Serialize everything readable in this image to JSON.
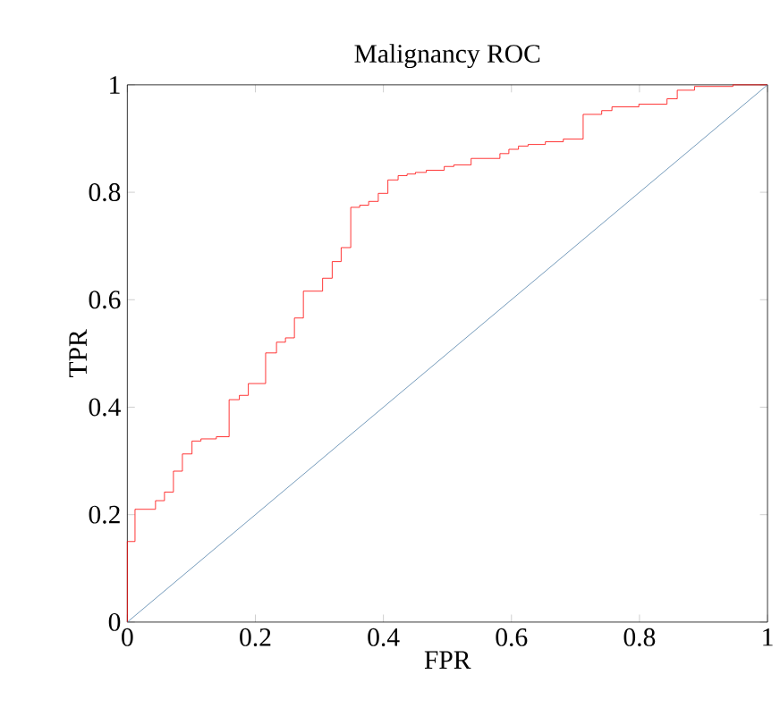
{
  "chart_data": {
    "type": "line",
    "title": "Malignancy ROC",
    "xlabel": "FPR",
    "ylabel": "TPR",
    "xlim": [
      0,
      1
    ],
    "ylim": [
      0,
      1
    ],
    "xticks": [
      0,
      0.2,
      0.4,
      0.6,
      0.8,
      1
    ],
    "yticks": [
      0,
      0.2,
      0.4,
      0.6,
      0.8,
      1
    ],
    "grid": false,
    "marker": "none",
    "series": [
      {
        "type": "step",
        "color": "#ff0000",
        "x": [
          0,
          0,
          0.012,
          0.044,
          0.058,
          0.072,
          0.086,
          0.101,
          0.115,
          0.139,
          0.159,
          0.175,
          0.189,
          0.216,
          0.233,
          0.247,
          0.261,
          0.275,
          0.305,
          0.32,
          0.334,
          0.349,
          0.363,
          0.377,
          0.392,
          0.407,
          0.423,
          0.437,
          0.45,
          0.467,
          0.495,
          0.51,
          0.537,
          0.582,
          0.596,
          0.611,
          0.626,
          0.653,
          0.681,
          0.712,
          0.741,
          0.757,
          0.799,
          0.843,
          0.859,
          0.886,
          0.946,
          1
        ],
        "values": [
          0,
          0.15,
          0.21,
          0.226,
          0.242,
          0.281,
          0.313,
          0.337,
          0.341,
          0.345,
          0.414,
          0.422,
          0.444,
          0.501,
          0.521,
          0.529,
          0.566,
          0.616,
          0.64,
          0.671,
          0.697,
          0.772,
          0.776,
          0.783,
          0.798,
          0.823,
          0.831,
          0.834,
          0.837,
          0.841,
          0.848,
          0.851,
          0.863,
          0.872,
          0.88,
          0.886,
          0.889,
          0.894,
          0.899,
          0.945,
          0.952,
          0.959,
          0.964,
          0.974,
          0.99,
          0.997,
          1,
          1
        ]
      },
      {
        "color": "#4f7fa8",
        "x": [
          0,
          1
        ],
        "values": [
          0,
          1
        ]
      }
    ]
  }
}
